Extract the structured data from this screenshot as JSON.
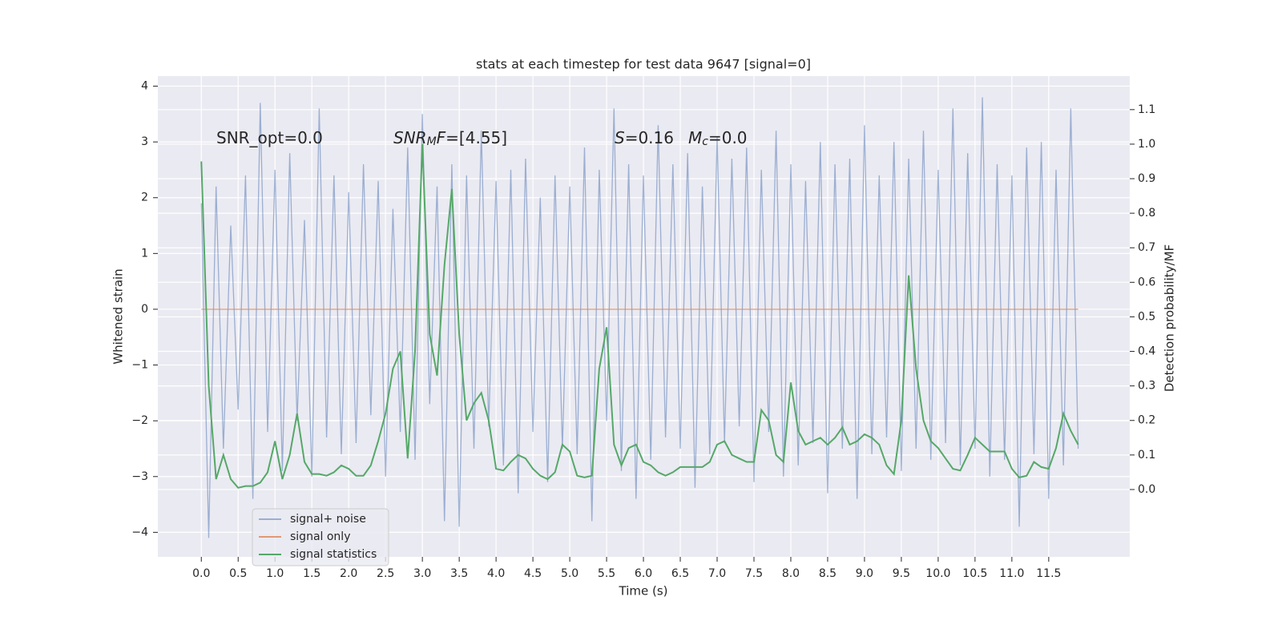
{
  "chart_data": {
    "type": "line",
    "title": "stats at each timestep for test data 9647 [signal=0]",
    "x_label": "Time (s)",
    "y_label": "Whitened strain",
    "y2_label": "Detection probability/MF",
    "annotations": [
      [
        "SNR_opt=0.0"
      ],
      [
        "SNR",
        "M",
        "F",
        "=[4.55]"
      ],
      [
        "S",
        "=0.16"
      ],
      [
        "M",
        "c",
        "=0.0"
      ]
    ],
    "x": [
      0,
      0.1,
      0.2,
      0.3,
      0.4,
      0.5,
      0.6,
      0.7,
      0.8,
      0.9,
      1,
      1.1,
      1.2,
      1.3,
      1.4,
      1.5,
      1.6,
      1.7,
      1.8,
      1.9,
      2,
      2.1,
      2.2,
      2.3,
      2.4,
      2.5,
      2.6,
      2.7,
      2.8,
      2.9,
      3,
      3.1,
      3.2,
      3.3,
      3.4,
      3.5,
      3.6,
      3.7,
      3.8,
      3.9,
      4,
      4.1,
      4.2,
      4.3,
      4.4,
      4.5,
      4.6,
      4.7,
      4.8,
      4.9,
      5,
      5.1,
      5.2,
      5.3,
      5.4,
      5.5,
      5.6,
      5.7,
      5.8,
      5.9,
      6,
      6.1,
      6.2,
      6.3,
      6.4,
      6.5,
      6.6,
      6.7,
      6.8,
      6.9,
      7,
      7.1,
      7.2,
      7.3,
      7.4,
      7.5,
      7.6,
      7.7,
      7.8,
      7.9,
      8,
      8.1,
      8.2,
      8.3,
      8.4,
      8.5,
      8.6,
      8.7,
      8.8,
      8.9,
      9,
      9.1,
      9.2,
      9.3,
      9.4,
      9.5,
      9.6,
      9.7,
      9.8,
      9.9,
      10,
      10.1,
      10.2,
      10.3,
      10.4,
      10.5,
      10.6,
      10.7,
      10.8,
      10.9,
      11,
      11.1,
      11.2,
      11.3,
      11.4,
      11.5,
      11.6,
      11.7,
      11.8,
      11.9
    ],
    "series": [
      {
        "name": "signal+ noise",
        "color": "#4c72b0",
        "opacity": 0.5,
        "values": [
          1.9,
          -4.1,
          2.2,
          -2.5,
          1.5,
          -1.8,
          2.4,
          -3.4,
          3.7,
          -2.2,
          2.5,
          -2.9,
          2.8,
          -2.0,
          1.6,
          -3.0,
          3.6,
          -2.3,
          2.4,
          -2.6,
          2.1,
          -2.4,
          2.6,
          -1.9,
          2.3,
          -3.0,
          1.8,
          -2.2,
          2.9,
          -2.7,
          3.5,
          -1.7,
          2.2,
          -3.8,
          2.6,
          -3.9,
          2.4,
          -2.5,
          3.2,
          -2.1,
          2.3,
          -2.8,
          2.5,
          -3.3,
          2.7,
          -2.2,
          2.0,
          -3.1,
          2.4,
          -2.5,
          2.2,
          -2.6,
          2.9,
          -3.8,
          2.5,
          -2.0,
          3.6,
          -2.9,
          2.6,
          -3.4,
          2.4,
          -2.7,
          3.3,
          -2.3,
          2.6,
          -2.5,
          2.8,
          -3.2,
          2.2,
          -2.6,
          3.1,
          -2.4,
          2.7,
          -2.1,
          2.9,
          -3.1,
          2.5,
          -2.2,
          3.2,
          -3.0,
          2.6,
          -2.8,
          2.3,
          -2.4,
          3.0,
          -3.3,
          2.6,
          -2.5,
          2.7,
          -3.4,
          3.3,
          -2.6,
          2.4,
          -2.3,
          3.0,
          -2.9,
          2.7,
          -2.5,
          3.2,
          -2.7,
          2.5,
          -2.4,
          3.6,
          -2.8,
          2.8,
          -2.5,
          3.8,
          -3.0,
          2.6,
          -2.7,
          2.4,
          -3.9,
          2.9,
          -2.6,
          3.0,
          -3.4,
          2.5,
          -2.8,
          3.6,
          -2.5
        ]
      },
      {
        "name": "signal only",
        "color": "#dd8452",
        "opacity": 0.8,
        "values": [
          0,
          0,
          0,
          0,
          0,
          0,
          0,
          0,
          0,
          0,
          0,
          0,
          0,
          0,
          0,
          0,
          0,
          0,
          0,
          0,
          0,
          0,
          0,
          0,
          0,
          0,
          0,
          0,
          0,
          0,
          0,
          0,
          0,
          0,
          0,
          0,
          0,
          0,
          0,
          0,
          0,
          0,
          0,
          0,
          0,
          0,
          0,
          0,
          0,
          0,
          0,
          0,
          0,
          0,
          0,
          0,
          0,
          0,
          0,
          0,
          0,
          0,
          0,
          0,
          0,
          0,
          0,
          0,
          0,
          0,
          0,
          0,
          0,
          0,
          0,
          0,
          0,
          0,
          0,
          0,
          0,
          0,
          0,
          0,
          0,
          0,
          0,
          0,
          0,
          0,
          0,
          0,
          0,
          0,
          0,
          0,
          0,
          0,
          0,
          0,
          0,
          0,
          0,
          0,
          0,
          0,
          0,
          0,
          0,
          0,
          0,
          0,
          0,
          0,
          0,
          0,
          0,
          0,
          0,
          0
        ]
      },
      {
        "name": "signal statistics",
        "color": "#55a868",
        "opacity": 1,
        "axis": "y2",
        "values": [
          0.95,
          0.3,
          0.03,
          0.1,
          0.03,
          0.005,
          0.01,
          0.01,
          0.02,
          0.05,
          0.14,
          0.03,
          0.1,
          0.22,
          0.08,
          0.045,
          0.045,
          0.04,
          0.05,
          0.07,
          0.06,
          0.04,
          0.04,
          0.07,
          0.14,
          0.22,
          0.35,
          0.4,
          0.09,
          0.4,
          1.0,
          0.45,
          0.33,
          0.65,
          0.87,
          0.45,
          0.2,
          0.25,
          0.28,
          0.2,
          0.06,
          0.055,
          0.08,
          0.1,
          0.09,
          0.06,
          0.04,
          0.03,
          0.05,
          0.13,
          0.11,
          0.04,
          0.035,
          0.04,
          0.35,
          0.47,
          0.13,
          0.07,
          0.12,
          0.13,
          0.08,
          0.07,
          0.05,
          0.04,
          0.05,
          0.065,
          0.065,
          0.065,
          0.065,
          0.08,
          0.13,
          0.14,
          0.1,
          0.09,
          0.08,
          0.08,
          0.23,
          0.2,
          0.1,
          0.08,
          0.31,
          0.17,
          0.13,
          0.14,
          0.15,
          0.13,
          0.15,
          0.18,
          0.13,
          0.14,
          0.16,
          0.15,
          0.13,
          0.07,
          0.045,
          0.2,
          0.62,
          0.35,
          0.2,
          0.14,
          0.12,
          0.09,
          0.06,
          0.055,
          0.1,
          0.15,
          0.13,
          0.11,
          0.11,
          0.11,
          0.06,
          0.035,
          0.04,
          0.08,
          0.065,
          0.06,
          0.12,
          0.22,
          0.17,
          0.13
        ]
      }
    ],
    "xlim": [
      -0.59,
      12.6
    ],
    "xticks": [
      {
        "value": 0,
        "label": "0.0"
      },
      {
        "value": 0.5,
        "label": "0.5"
      },
      {
        "value": 1,
        "label": "1.0"
      },
      {
        "value": 1.5,
        "label": "1.5"
      },
      {
        "value": 2,
        "label": "2.0"
      },
      {
        "value": 2.5,
        "label": "2.5"
      },
      {
        "value": 3,
        "label": "3.0"
      },
      {
        "value": 3.5,
        "label": "3.5"
      },
      {
        "value": 4,
        "label": "4.0"
      },
      {
        "value": 4.5,
        "label": "4.5"
      },
      {
        "value": 5,
        "label": "5.0"
      },
      {
        "value": 5.5,
        "label": "5.5"
      },
      {
        "value": 6,
        "label": "6.0"
      },
      {
        "value": 6.5,
        "label": "6.5"
      },
      {
        "value": 7,
        "label": "7.0"
      },
      {
        "value": 7.5,
        "label": "7.5"
      },
      {
        "value": 8,
        "label": "8.0"
      },
      {
        "value": 8.5,
        "label": "8.5"
      },
      {
        "value": 9,
        "label": "9.0"
      },
      {
        "value": 9.5,
        "label": "9.5"
      },
      {
        "value": 10,
        "label": "10.0"
      },
      {
        "value": 10.5,
        "label": "10.5"
      },
      {
        "value": 11,
        "label": "11.0"
      },
      {
        "value": 11.5,
        "label": "11.5"
      }
    ],
    "ylim": [
      -4.44,
      4.18
    ],
    "yticks": [
      {
        "value": -4,
        "label": "−4"
      },
      {
        "value": -3,
        "label": "−3"
      },
      {
        "value": -2,
        "label": "−2"
      },
      {
        "value": -1,
        "label": "−1"
      },
      0,
      1,
      2,
      3,
      4
    ],
    "y2lim": [
      -0.195,
      1.197
    ],
    "y2ticks": [
      {
        "value": 0,
        "label": "0.0"
      },
      {
        "value": 0.1,
        "label": "0.1"
      },
      {
        "value": 0.2,
        "label": "0.2"
      },
      {
        "value": 0.3,
        "label": "0.3"
      },
      {
        "value": 0.4,
        "label": "0.4"
      },
      {
        "value": 0.5,
        "label": "0.5"
      },
      {
        "value": 0.6,
        "label": "0.6"
      },
      {
        "value": 0.7,
        "label": "0.7"
      },
      {
        "value": 0.8,
        "label": "0.8"
      },
      {
        "value": 0.9,
        "label": "0.9"
      },
      {
        "value": 1,
        "label": "1.0"
      },
      {
        "value": 1.1,
        "label": "1.1"
      }
    ],
    "grid": true,
    "legend": "lower left"
  }
}
